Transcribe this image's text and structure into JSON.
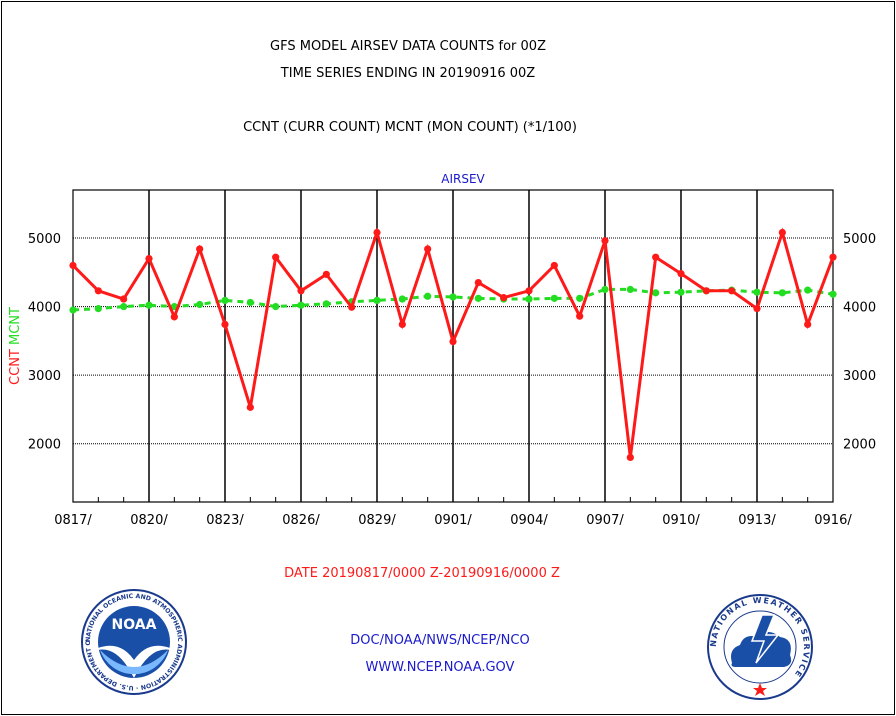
{
  "header": {
    "title_line1": "GFS MODEL AIRSEV DATA COUNTS for 00Z",
    "title_line2": "TIME SERIES ENDING IN 20190916 00Z",
    "subtitle": "CCNT (CURR COUNT) MCNT (MON COUNT) (*1/100)"
  },
  "footer": {
    "date_range": "DATE 20190817/0000 Z-20190916/0000 Z",
    "org_line": "DOC/NOAA/NWS/NCEP/NCO",
    "url_line": "WWW.NCEP.NOAA.GOV"
  },
  "logos": {
    "noaa_text": "NOAA",
    "noaa_ring_text": "NATIONAL OCEANIC AND ATMOSPHERIC ADMINISTRATION · U.S. DEPARTMENT OF COMMERCE",
    "nws_ring_text": "NATIONAL WEATHER SERVICE"
  },
  "colors": {
    "ccnt": "#ff1a1a",
    "mcnt": "#22dd22",
    "panel_label": "#1a1acc",
    "footer_blue": "#1a1acc",
    "date_red": "#ff1a1a"
  },
  "chart_data": {
    "type": "line",
    "title": "AIRSEV",
    "ylabel_ccnt": "CCNT",
    "ylabel_mcnt": "MCNT",
    "ylim": [
      1150,
      5700
    ],
    "xlim": [
      0,
      30
    ],
    "yticks": [
      2000,
      3000,
      4000,
      5000
    ],
    "xtick_labels": [
      "0817/",
      "0820/",
      "0823/",
      "0826/",
      "0829/",
      "0901/",
      "0904/",
      "0907/",
      "0910/",
      "0913/",
      "0916/"
    ],
    "xtick_positions": [
      0,
      3,
      6,
      9,
      12,
      15,
      18,
      21,
      24,
      27,
      30
    ],
    "grid": true,
    "series": [
      {
        "name": "CCNT",
        "values": [
          4600,
          4230,
          4110,
          4700,
          3850,
          4840,
          3740,
          2530,
          4720,
          4230,
          4470,
          3990,
          5080,
          3740,
          4840,
          3490,
          4350,
          4130,
          4230,
          4600,
          3860,
          4960,
          1800,
          4720,
          4480,
          4230,
          4230,
          3970,
          5080,
          3740,
          4720
        ]
      },
      {
        "name": "MCNT",
        "values": [
          3950,
          3970,
          4000,
          4020,
          4000,
          4030,
          4090,
          4060,
          4000,
          4020,
          4040,
          4070,
          4090,
          4110,
          4150,
          4140,
          4120,
          4110,
          4110,
          4120,
          4120,
          4250,
          4250,
          4200,
          4210,
          4230,
          4240,
          4210,
          4200,
          4240,
          4180
        ]
      }
    ]
  }
}
